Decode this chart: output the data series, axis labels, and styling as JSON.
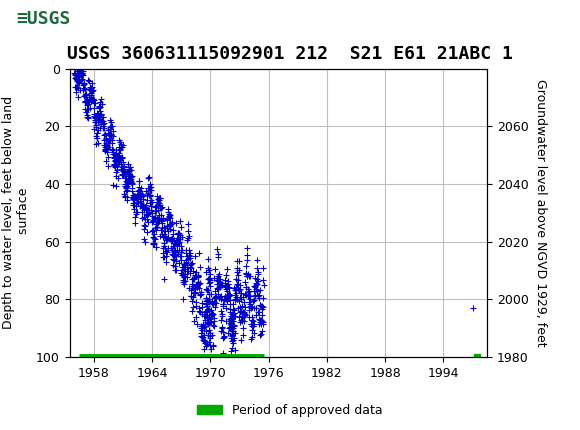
{
  "title": "USGS 360631115092901 212  S21 E61 21ABC 1",
  "ylabel_left": "Depth to water level, feet below land\n surface",
  "ylabel_right": "Groundwater level above NGVD 1929, feet",
  "ylim_left": [
    100,
    0
  ],
  "ylim_right": [
    1980,
    2080
  ],
  "xlim": [
    1955.5,
    1998.5
  ],
  "xticks": [
    1958,
    1964,
    1970,
    1976,
    1982,
    1988,
    1994
  ],
  "yticks_left": [
    0,
    20,
    40,
    60,
    80,
    100
  ],
  "yticks_right": [
    1980,
    2000,
    2020,
    2040,
    2060
  ],
  "data_color": "#0000cc",
  "marker": "+",
  "markersize": 4,
  "grid_color": "#c0c0c0",
  "background_color": "#ffffff",
  "header_color": "#1a6b3c",
  "legend_label": "Period of approved data",
  "legend_color": "#00aa00",
  "approved_bar_xstart": 1956.5,
  "approved_bar_xend": 1975.5,
  "approved_dot_x": 1997.5,
  "title_fontsize": 13,
  "axis_fontsize": 9,
  "tick_fontsize": 9
}
